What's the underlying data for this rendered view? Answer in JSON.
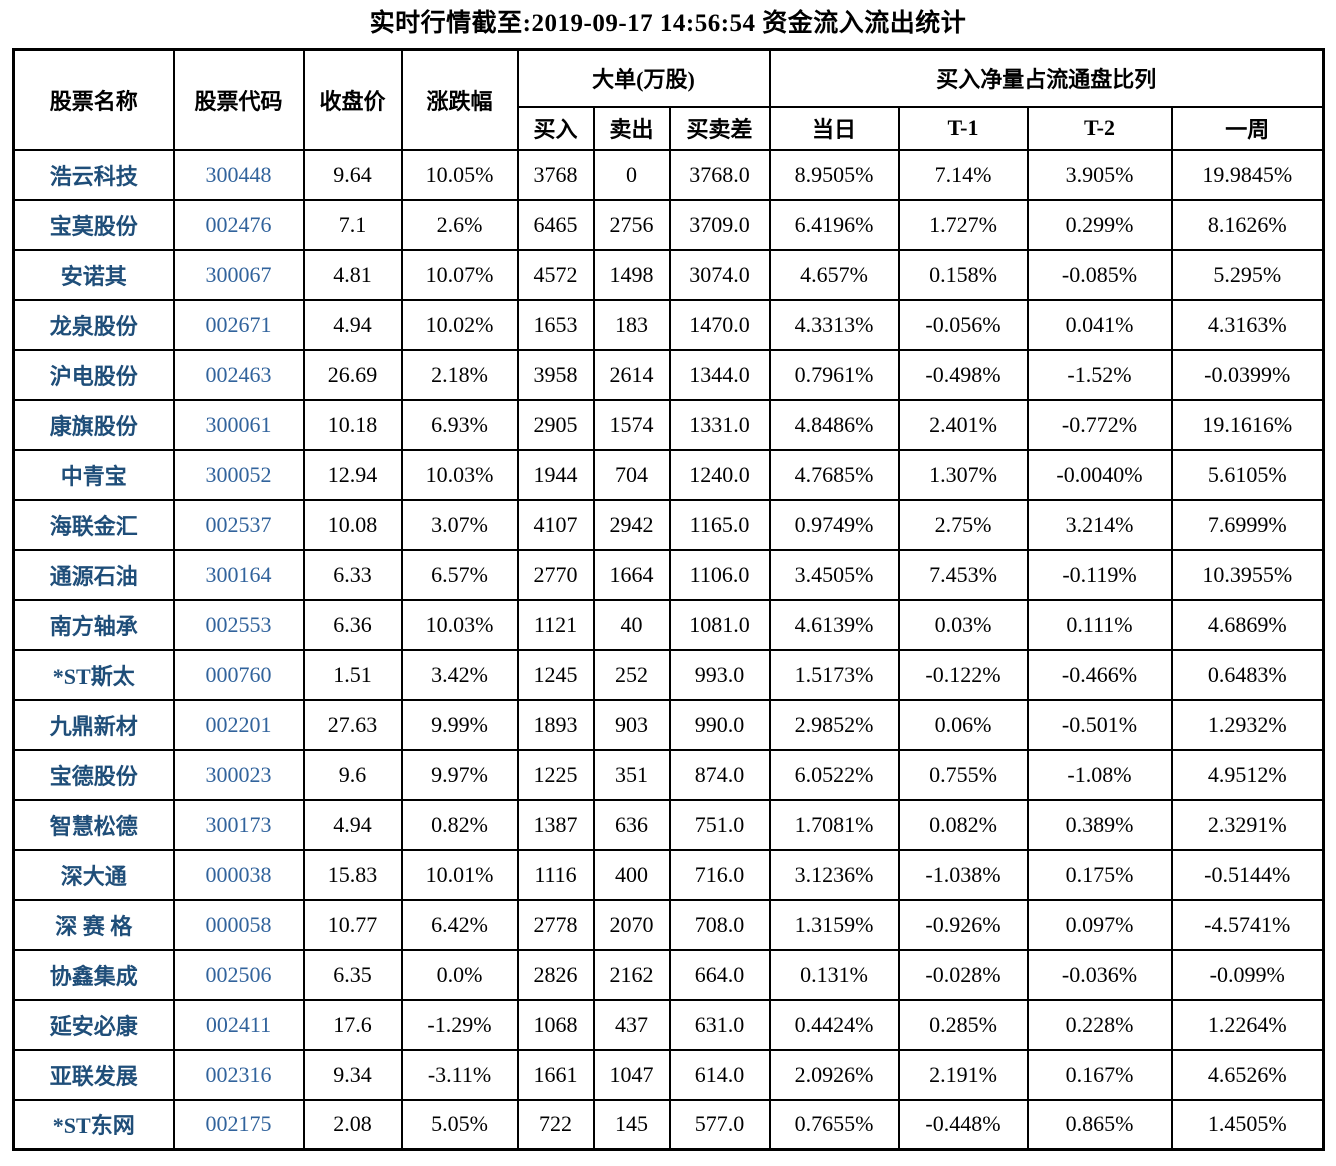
{
  "title": "实时行情截至:2019-09-17 14:56:54 资金流入流出统计",
  "colors": {
    "stock_name_text": "#1f4e79",
    "stock_code_text": "#31639c",
    "body_text": "#000000",
    "border": "#000000",
    "background": "#ffffff"
  },
  "chart_data": {
    "type": "table",
    "title": "实时行情截至:2019-09-17 14:56:54 资金流入流出统计",
    "headers": {
      "stock_name": "股票名称",
      "stock_code": "股票代码",
      "close_price": "收盘价",
      "change_pct": "涨跌幅",
      "big_orders_group": "大单(万股)",
      "buy": "买入",
      "sell": "卖出",
      "buy_sell_diff": "买卖差",
      "net_buy_group": "买入净量占流通盘比列",
      "today": "当日",
      "t1": "T-1",
      "t2": "T-2",
      "week": "一周"
    },
    "column_order": [
      "股票名称",
      "股票代码",
      "收盘价",
      "涨跌幅",
      "买入",
      "卖出",
      "买卖差",
      "当日",
      "T-1",
      "T-2",
      "一周"
    ],
    "groups": [
      {
        "label": "大单(万股)",
        "columns": [
          "买入",
          "卖出",
          "买卖差"
        ]
      },
      {
        "label": "买入净量占流通盘比列",
        "columns": [
          "当日",
          "T-1",
          "T-2",
          "一周"
        ]
      }
    ],
    "rows": [
      [
        "浩云科技",
        "300448",
        "9.64",
        "10.05%",
        "3768",
        "0",
        "3768.0",
        "8.9505%",
        "7.14%",
        "3.905%",
        "19.9845%"
      ],
      [
        "宝莫股份",
        "002476",
        "7.1",
        "2.6%",
        "6465",
        "2756",
        "3709.0",
        "6.4196%",
        "1.727%",
        "0.299%",
        "8.1626%"
      ],
      [
        "安诺其",
        "300067",
        "4.81",
        "10.07%",
        "4572",
        "1498",
        "3074.0",
        "4.657%",
        "0.158%",
        "-0.085%",
        "5.295%"
      ],
      [
        "龙泉股份",
        "002671",
        "4.94",
        "10.02%",
        "1653",
        "183",
        "1470.0",
        "4.3313%",
        "-0.056%",
        "0.041%",
        "4.3163%"
      ],
      [
        "沪电股份",
        "002463",
        "26.69",
        "2.18%",
        "3958",
        "2614",
        "1344.0",
        "0.7961%",
        "-0.498%",
        "-1.52%",
        "-0.0399%"
      ],
      [
        "康旗股份",
        "300061",
        "10.18",
        "6.93%",
        "2905",
        "1574",
        "1331.0",
        "4.8486%",
        "2.401%",
        "-0.772%",
        "19.1616%"
      ],
      [
        "中青宝",
        "300052",
        "12.94",
        "10.03%",
        "1944",
        "704",
        "1240.0",
        "4.7685%",
        "1.307%",
        "-0.0040%",
        "5.6105%"
      ],
      [
        "海联金汇",
        "002537",
        "10.08",
        "3.07%",
        "4107",
        "2942",
        "1165.0",
        "0.9749%",
        "2.75%",
        "3.214%",
        "7.6999%"
      ],
      [
        "通源石油",
        "300164",
        "6.33",
        "6.57%",
        "2770",
        "1664",
        "1106.0",
        "3.4505%",
        "7.453%",
        "-0.119%",
        "10.3955%"
      ],
      [
        "南方轴承",
        "002553",
        "6.36",
        "10.03%",
        "1121",
        "40",
        "1081.0",
        "4.6139%",
        "0.03%",
        "0.111%",
        "4.6869%"
      ],
      [
        "*ST斯太",
        "000760",
        "1.51",
        "3.42%",
        "1245",
        "252",
        "993.0",
        "1.5173%",
        "-0.122%",
        "-0.466%",
        "0.6483%"
      ],
      [
        "九鼎新材",
        "002201",
        "27.63",
        "9.99%",
        "1893",
        "903",
        "990.0",
        "2.9852%",
        "0.06%",
        "-0.501%",
        "1.2932%"
      ],
      [
        "宝德股份",
        "300023",
        "9.6",
        "9.97%",
        "1225",
        "351",
        "874.0",
        "6.0522%",
        "0.755%",
        "-1.08%",
        "4.9512%"
      ],
      [
        "智慧松德",
        "300173",
        "4.94",
        "0.82%",
        "1387",
        "636",
        "751.0",
        "1.7081%",
        "0.082%",
        "0.389%",
        "2.3291%"
      ],
      [
        "深大通",
        "000038",
        "15.83",
        "10.01%",
        "1116",
        "400",
        "716.0",
        "3.1236%",
        "-1.038%",
        "0.175%",
        "-0.5144%"
      ],
      [
        "深 赛 格",
        "000058",
        "10.77",
        "6.42%",
        "2778",
        "2070",
        "708.0",
        "1.3159%",
        "-0.926%",
        "0.097%",
        "-4.5741%"
      ],
      [
        "协鑫集成",
        "002506",
        "6.35",
        "0.0%",
        "2826",
        "2162",
        "664.0",
        "0.131%",
        "-0.028%",
        "-0.036%",
        "-0.099%"
      ],
      [
        "延安必康",
        "002411",
        "17.6",
        "-1.29%",
        "1068",
        "437",
        "631.0",
        "0.4424%",
        "0.285%",
        "0.228%",
        "1.2264%"
      ],
      [
        "亚联发展",
        "002316",
        "9.34",
        "-3.11%",
        "1661",
        "1047",
        "614.0",
        "2.0926%",
        "2.191%",
        "0.167%",
        "4.6526%"
      ],
      [
        "*ST东网",
        "002175",
        "2.08",
        "5.05%",
        "722",
        "145",
        "577.0",
        "0.7655%",
        "-0.448%",
        "0.865%",
        "1.4505%"
      ]
    ]
  }
}
